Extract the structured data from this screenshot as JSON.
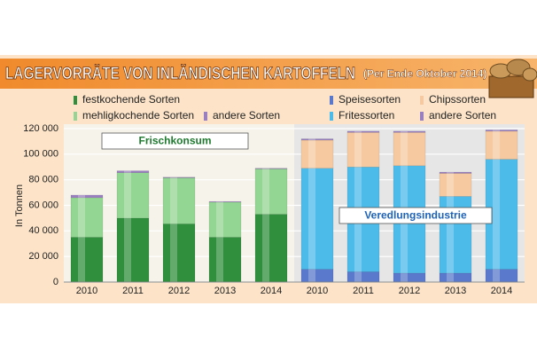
{
  "chart_data": {
    "type": "bar",
    "stacked": true,
    "title": "LAGERVORRÄTE VON INLÄNDISCHEN KARTOFFELN",
    "subtitle": "(Per Ende Oktober 2014)",
    "ylabel": "In Tonnen",
    "ylim": [
      0,
      120000
    ],
    "yticks": [
      0,
      {
        "value": 20000,
        "label": "20 000"
      },
      {
        "value": 40000,
        "label": "40 000"
      },
      {
        "value": 60000,
        "label": "60 000"
      },
      {
        "value": 80000,
        "label": "80 000"
      },
      {
        "value": 100000,
        "label": "100 000"
      },
      {
        "value": 120000,
        "label": "120 000"
      }
    ],
    "grid": true,
    "groups": [
      {
        "label": "Frischkonsum",
        "label_color": "#1d7a2e",
        "background": "#f6f3ea",
        "categories": [
          "2010",
          "2011",
          "2012",
          "2013",
          "2014"
        ],
        "series": [
          {
            "name": "festkochende Sorten",
            "color": "#2f8f3c",
            "values": [
              35000,
              50000,
              45500,
              35000,
              53000
            ]
          },
          {
            "name": "mehligkochende Sorten",
            "color": "#93d592",
            "values": [
              31000,
              35500,
              36000,
              27500,
              35500
            ]
          },
          {
            "name": "andere Sorten",
            "color": "#9a7fc0",
            "values": [
              2000,
              1500,
              500,
              500,
              500
            ]
          }
        ]
      },
      {
        "label": "Veredlungsindustrie",
        "label_color": "#1f63b8",
        "background": "#e6e6e6",
        "categories": [
          "2010",
          "2011",
          "2012",
          "2013",
          "2014"
        ],
        "series": [
          {
            "name": "Speisesorten",
            "color": "#5a78cc",
            "values": [
              10000,
              8000,
              7000,
              7000,
              10000
            ]
          },
          {
            "name": "Fritessorten",
            "color": "#4dbbea",
            "values": [
              79000,
              82000,
              84000,
              60000,
              86000
            ]
          },
          {
            "name": "Chipssorten",
            "color": "#f6c9a0",
            "values": [
              22000,
              27000,
              26000,
              18000,
              22000
            ]
          },
          {
            "name": "andere Sorten",
            "color": "#9a7fc0",
            "values": [
              1000,
              1000,
              1000,
              1000,
              1000
            ]
          }
        ]
      }
    ]
  }
}
